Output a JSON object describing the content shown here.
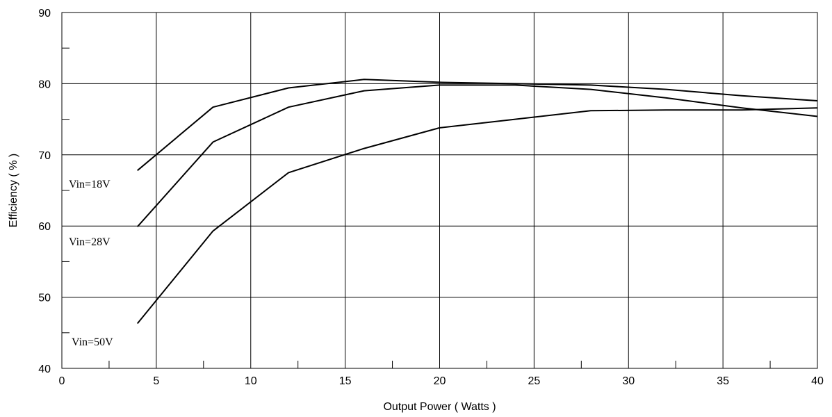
{
  "chart_data": {
    "type": "line",
    "xlabel": "Output Power ( Watts )",
    "ylabel": "Efficiency ( % )",
    "xlim": [
      0,
      40
    ],
    "ylim": [
      40,
      90
    ],
    "x_ticks": [
      0,
      5,
      10,
      15,
      20,
      25,
      30,
      35,
      40
    ],
    "y_ticks": [
      40,
      50,
      60,
      70,
      80,
      90
    ],
    "grid": true,
    "series": [
      {
        "name": "Vin=18V",
        "points": [
          [
            4,
            67.8
          ],
          [
            8,
            76.7
          ],
          [
            12,
            79.4
          ],
          [
            16,
            80.6
          ],
          [
            20,
            80.2
          ],
          [
            24,
            80.0
          ],
          [
            28,
            79.8
          ],
          [
            32,
            79.2
          ],
          [
            36,
            78.3
          ],
          [
            40,
            77.6
          ]
        ]
      },
      {
        "name": "Vin=28V",
        "points": [
          [
            4,
            59.9
          ],
          [
            8,
            71.8
          ],
          [
            12,
            76.7
          ],
          [
            16,
            79.0
          ],
          [
            20,
            79.8
          ],
          [
            24,
            79.8
          ],
          [
            28,
            79.2
          ],
          [
            32,
            78.0
          ],
          [
            36,
            76.6
          ],
          [
            40,
            75.4
          ]
        ]
      },
      {
        "name": "Vin=50V",
        "points": [
          [
            4,
            46.3
          ],
          [
            8,
            59.3
          ],
          [
            12,
            67.5
          ],
          [
            16,
            70.9
          ],
          [
            20,
            73.8
          ],
          [
            24,
            75.0
          ],
          [
            28,
            76.2
          ],
          [
            32,
            76.3
          ],
          [
            36,
            76.3
          ],
          [
            40,
            76.6
          ]
        ]
      }
    ]
  }
}
